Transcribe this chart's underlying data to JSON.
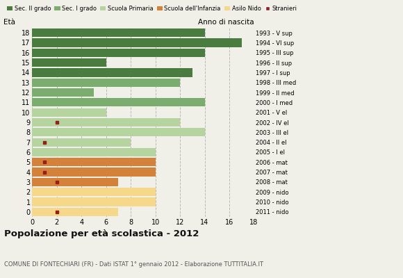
{
  "ages": [
    18,
    17,
    16,
    15,
    14,
    13,
    12,
    11,
    10,
    9,
    8,
    7,
    6,
    5,
    4,
    3,
    2,
    1,
    0
  ],
  "bar_values": [
    14,
    17,
    14,
    6,
    13,
    12,
    5,
    14,
    6,
    12,
    14,
    8,
    10,
    10,
    10,
    7,
    10,
    10,
    7
  ],
  "stranieri": [
    0,
    0,
    0,
    0,
    0,
    0,
    0,
    0,
    0,
    2,
    0,
    1,
    0,
    1,
    1,
    2,
    0,
    0,
    2
  ],
  "right_labels": [
    "1993 - V sup",
    "1994 - VI sup",
    "1995 - III sup",
    "1996 - II sup",
    "1997 - I sup",
    "1998 - III med",
    "1999 - II med",
    "2000 - I med",
    "2001 - V el",
    "2002 - IV el",
    "2003 - III el",
    "2004 - II el",
    "2005 - I el",
    "2006 - mat",
    "2007 - mat",
    "2008 - mat",
    "2009 - nido",
    "2010 - nido",
    "2011 - nido"
  ],
  "colors": {
    "Sec. II grado": "#4a7c3f",
    "Sec. I grado": "#7aad6e",
    "Scuola Primaria": "#b5d4a0",
    "Scuola dell'Infanzia": "#d4813a",
    "Asilo Nido": "#f5d88a",
    "Stranieri": "#9b1c1c"
  },
  "age_category": {
    "18": "Sec. II grado",
    "17": "Sec. II grado",
    "16": "Sec. II grado",
    "15": "Sec. II grado",
    "14": "Sec. II grado",
    "13": "Sec. I grado",
    "12": "Sec. I grado",
    "11": "Sec. I grado",
    "10": "Scuola Primaria",
    "9": "Scuola Primaria",
    "8": "Scuola Primaria",
    "7": "Scuola Primaria",
    "6": "Scuola Primaria",
    "5": "Scuola dell'Infanzia",
    "4": "Scuola dell'Infanzia",
    "3": "Scuola dell'Infanzia",
    "2": "Asilo Nido",
    "1": "Asilo Nido",
    "0": "Asilo Nido"
  },
  "title": "Popolazione per età scolastica - 2012",
  "subtitle": "COMUNE DI FONTECHIARI (FR) - Dati ISTAT 1° gennaio 2012 - Elaborazione TUTTITALIA.IT",
  "ylabel_left": "Età",
  "ylabel_right": "Anno di nascita",
  "xlim": [
    0,
    18
  ],
  "bar_height": 0.85,
  "background_color": "#f0f0e8",
  "grid_color": "#bbbbbb"
}
